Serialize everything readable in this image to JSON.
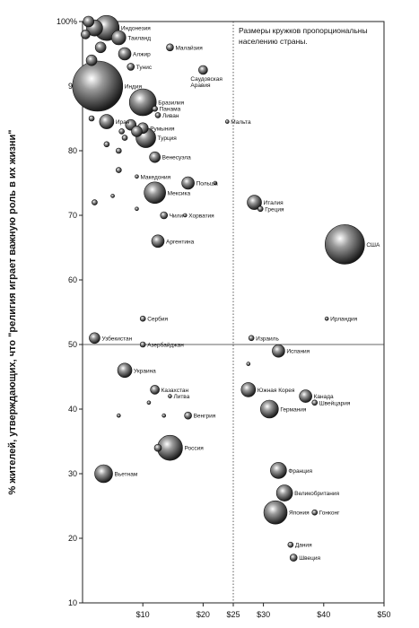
{
  "chart_data": {
    "type": "scatter",
    "xlabel": "",
    "ylabel": "% жителей, утверждающих, что \"религия играет важную роль в их жизни\"",
    "annotation": "Размеры кружков пропорциональны населению страны.",
    "xlim": [
      0,
      50
    ],
    "ylim": [
      10,
      100
    ],
    "x_ticks": [
      "$10",
      "$20",
      "$25",
      "$30",
      "$40",
      "$50"
    ],
    "x_tick_values": [
      10,
      20,
      25,
      30,
      40,
      50
    ],
    "y_ticks": [
      "10",
      "20",
      "30",
      "40",
      "50",
      "60",
      "70",
      "80",
      "90",
      "100%"
    ],
    "y_tick_values": [
      10,
      20,
      30,
      40,
      50,
      60,
      70,
      80,
      90,
      100
    ],
    "reference_lines": {
      "x": 25,
      "y": 50
    },
    "points": [
      {
        "label": "",
        "x": 1,
        "y": 102,
        "size": 6
      },
      {
        "label": "",
        "x": 0.5,
        "y": 98,
        "size": 5
      },
      {
        "label": "Индонезия",
        "x": 4,
        "y": 99,
        "size": 14
      },
      {
        "label": "",
        "x": 2,
        "y": 99,
        "size": 9
      },
      {
        "label": "Таиланд",
        "x": 6,
        "y": 97.5,
        "size": 8
      },
      {
        "label": "",
        "x": 3,
        "y": 96,
        "size": 6
      },
      {
        "label": "",
        "x": 1.5,
        "y": 94,
        "size": 6
      },
      {
        "label": "Малайзия",
        "x": 14.5,
        "y": 96,
        "size": 4
      },
      {
        "label": "Алжир",
        "x": 7,
        "y": 95,
        "size": 7
      },
      {
        "label": "Тунис",
        "x": 8,
        "y": 93,
        "size": 4
      },
      {
        "label": "Саудовская Аравия",
        "x": 20,
        "y": 92.5,
        "size": 5
      },
      {
        "label": "Индия",
        "x": 2.5,
        "y": 90,
        "size": 28
      },
      {
        "label": "Бразилия",
        "x": 10,
        "y": 87.5,
        "size": 15
      },
      {
        "label": "Панама",
        "x": 12,
        "y": 86.5,
        "size": 3
      },
      {
        "label": "Ливан",
        "x": 12.5,
        "y": 85.5,
        "size": 3
      },
      {
        "label": "Мальта",
        "x": 24,
        "y": 84.5,
        "size": 2
      },
      {
        "label": "Иран",
        "x": 4,
        "y": 84.5,
        "size": 8
      },
      {
        "label": "Румыния",
        "x": 10,
        "y": 83.5,
        "size": 6
      },
      {
        "label": "",
        "x": 1.5,
        "y": 85,
        "size": 3
      },
      {
        "label": "",
        "x": 8,
        "y": 84,
        "size": 6
      },
      {
        "label": "",
        "x": 9,
        "y": 83,
        "size": 6
      },
      {
        "label": "",
        "x": 6.5,
        "y": 83,
        "size": 3
      },
      {
        "label": "",
        "x": 7,
        "y": 82,
        "size": 3
      },
      {
        "label": "Турция",
        "x": 10.5,
        "y": 82,
        "size": 11
      },
      {
        "label": "",
        "x": 4,
        "y": 81,
        "size": 3
      },
      {
        "label": "Венесуэла",
        "x": 12,
        "y": 79,
        "size": 6
      },
      {
        "label": "",
        "x": 6,
        "y": 80,
        "size": 3
      },
      {
        "label": "",
        "x": 6,
        "y": 77,
        "size": 3
      },
      {
        "label": "Македония",
        "x": 9,
        "y": 76,
        "size": 2
      },
      {
        "label": "Польша",
        "x": 17.5,
        "y": 75,
        "size": 7
      },
      {
        "label": "",
        "x": 22,
        "y": 75,
        "size": 2
      },
      {
        "label": "",
        "x": 5,
        "y": 73,
        "size": 2
      },
      {
        "label": "",
        "x": 2,
        "y": 72,
        "size": 3
      },
      {
        "label": "Мексика",
        "x": 12,
        "y": 73.5,
        "size": 12
      },
      {
        "label": "Италия",
        "x": 28.5,
        "y": 72,
        "size": 8
      },
      {
        "label": "Греция",
        "x": 29.5,
        "y": 71,
        "size": 3
      },
      {
        "label": "",
        "x": 9,
        "y": 71,
        "size": 2
      },
      {
        "label": "Чили",
        "x": 13.5,
        "y": 70,
        "size": 4
      },
      {
        "label": "Хорватия",
        "x": 17,
        "y": 70,
        "size": 2
      },
      {
        "label": "Аргентина",
        "x": 12.5,
        "y": 66,
        "size": 7
      },
      {
        "label": "США",
        "x": 43.5,
        "y": 65.5,
        "size": 22
      },
      {
        "label": "Сербия",
        "x": 10,
        "y": 54,
        "size": 3
      },
      {
        "label": "Ирландия",
        "x": 40.5,
        "y": 54,
        "size": 2
      },
      {
        "label": "Узбекистан",
        "x": 2,
        "y": 51,
        "size": 6
      },
      {
        "label": "Азербайджан",
        "x": 10,
        "y": 50,
        "size": 3
      },
      {
        "label": "Израиль",
        "x": 28,
        "y": 51,
        "size": 3
      },
      {
        "label": "Испания",
        "x": 32.5,
        "y": 49,
        "size": 7
      },
      {
        "label": "",
        "x": 27.5,
        "y": 47,
        "size": 2
      },
      {
        "label": "Украина",
        "x": 7,
        "y": 46,
        "size": 8
      },
      {
        "label": "Казахстан",
        "x": 12,
        "y": 43,
        "size": 5
      },
      {
        "label": "Литва",
        "x": 14.5,
        "y": 42,
        "size": 2
      },
      {
        "label": "",
        "x": 11,
        "y": 41,
        "size": 2
      },
      {
        "label": "Южная Корея",
        "x": 27.5,
        "y": 43,
        "size": 8
      },
      {
        "label": "Канада",
        "x": 37,
        "y": 42,
        "size": 7
      },
      {
        "label": "Швейцария",
        "x": 38.5,
        "y": 41,
        "size": 3
      },
      {
        "label": "Германия",
        "x": 31,
        "y": 40,
        "size": 10
      },
      {
        "label": "Венгрия",
        "x": 17.5,
        "y": 39,
        "size": 4
      },
      {
        "label": "",
        "x": 6,
        "y": 39,
        "size": 2
      },
      {
        "label": "",
        "x": 13.5,
        "y": 39,
        "size": 2
      },
      {
        "label": "Россия",
        "x": 14.5,
        "y": 34,
        "size": 14
      },
      {
        "label": "",
        "x": 12.5,
        "y": 34,
        "size": 4
      },
      {
        "label": "Вьетнам",
        "x": 3.5,
        "y": 30,
        "size": 10
      },
      {
        "label": "Франция",
        "x": 32.5,
        "y": 30.5,
        "size": 9
      },
      {
        "label": "Великобритания",
        "x": 33.5,
        "y": 27,
        "size": 9
      },
      {
        "label": "Япония",
        "x": 32,
        "y": 24,
        "size": 13
      },
      {
        "label": "Гонконг",
        "x": 38.5,
        "y": 24,
        "size": 3
      },
      {
        "label": "Дания",
        "x": 34.5,
        "y": 19,
        "size": 3
      },
      {
        "label": "Швеция",
        "x": 35,
        "y": 17,
        "size": 4
      }
    ]
  }
}
